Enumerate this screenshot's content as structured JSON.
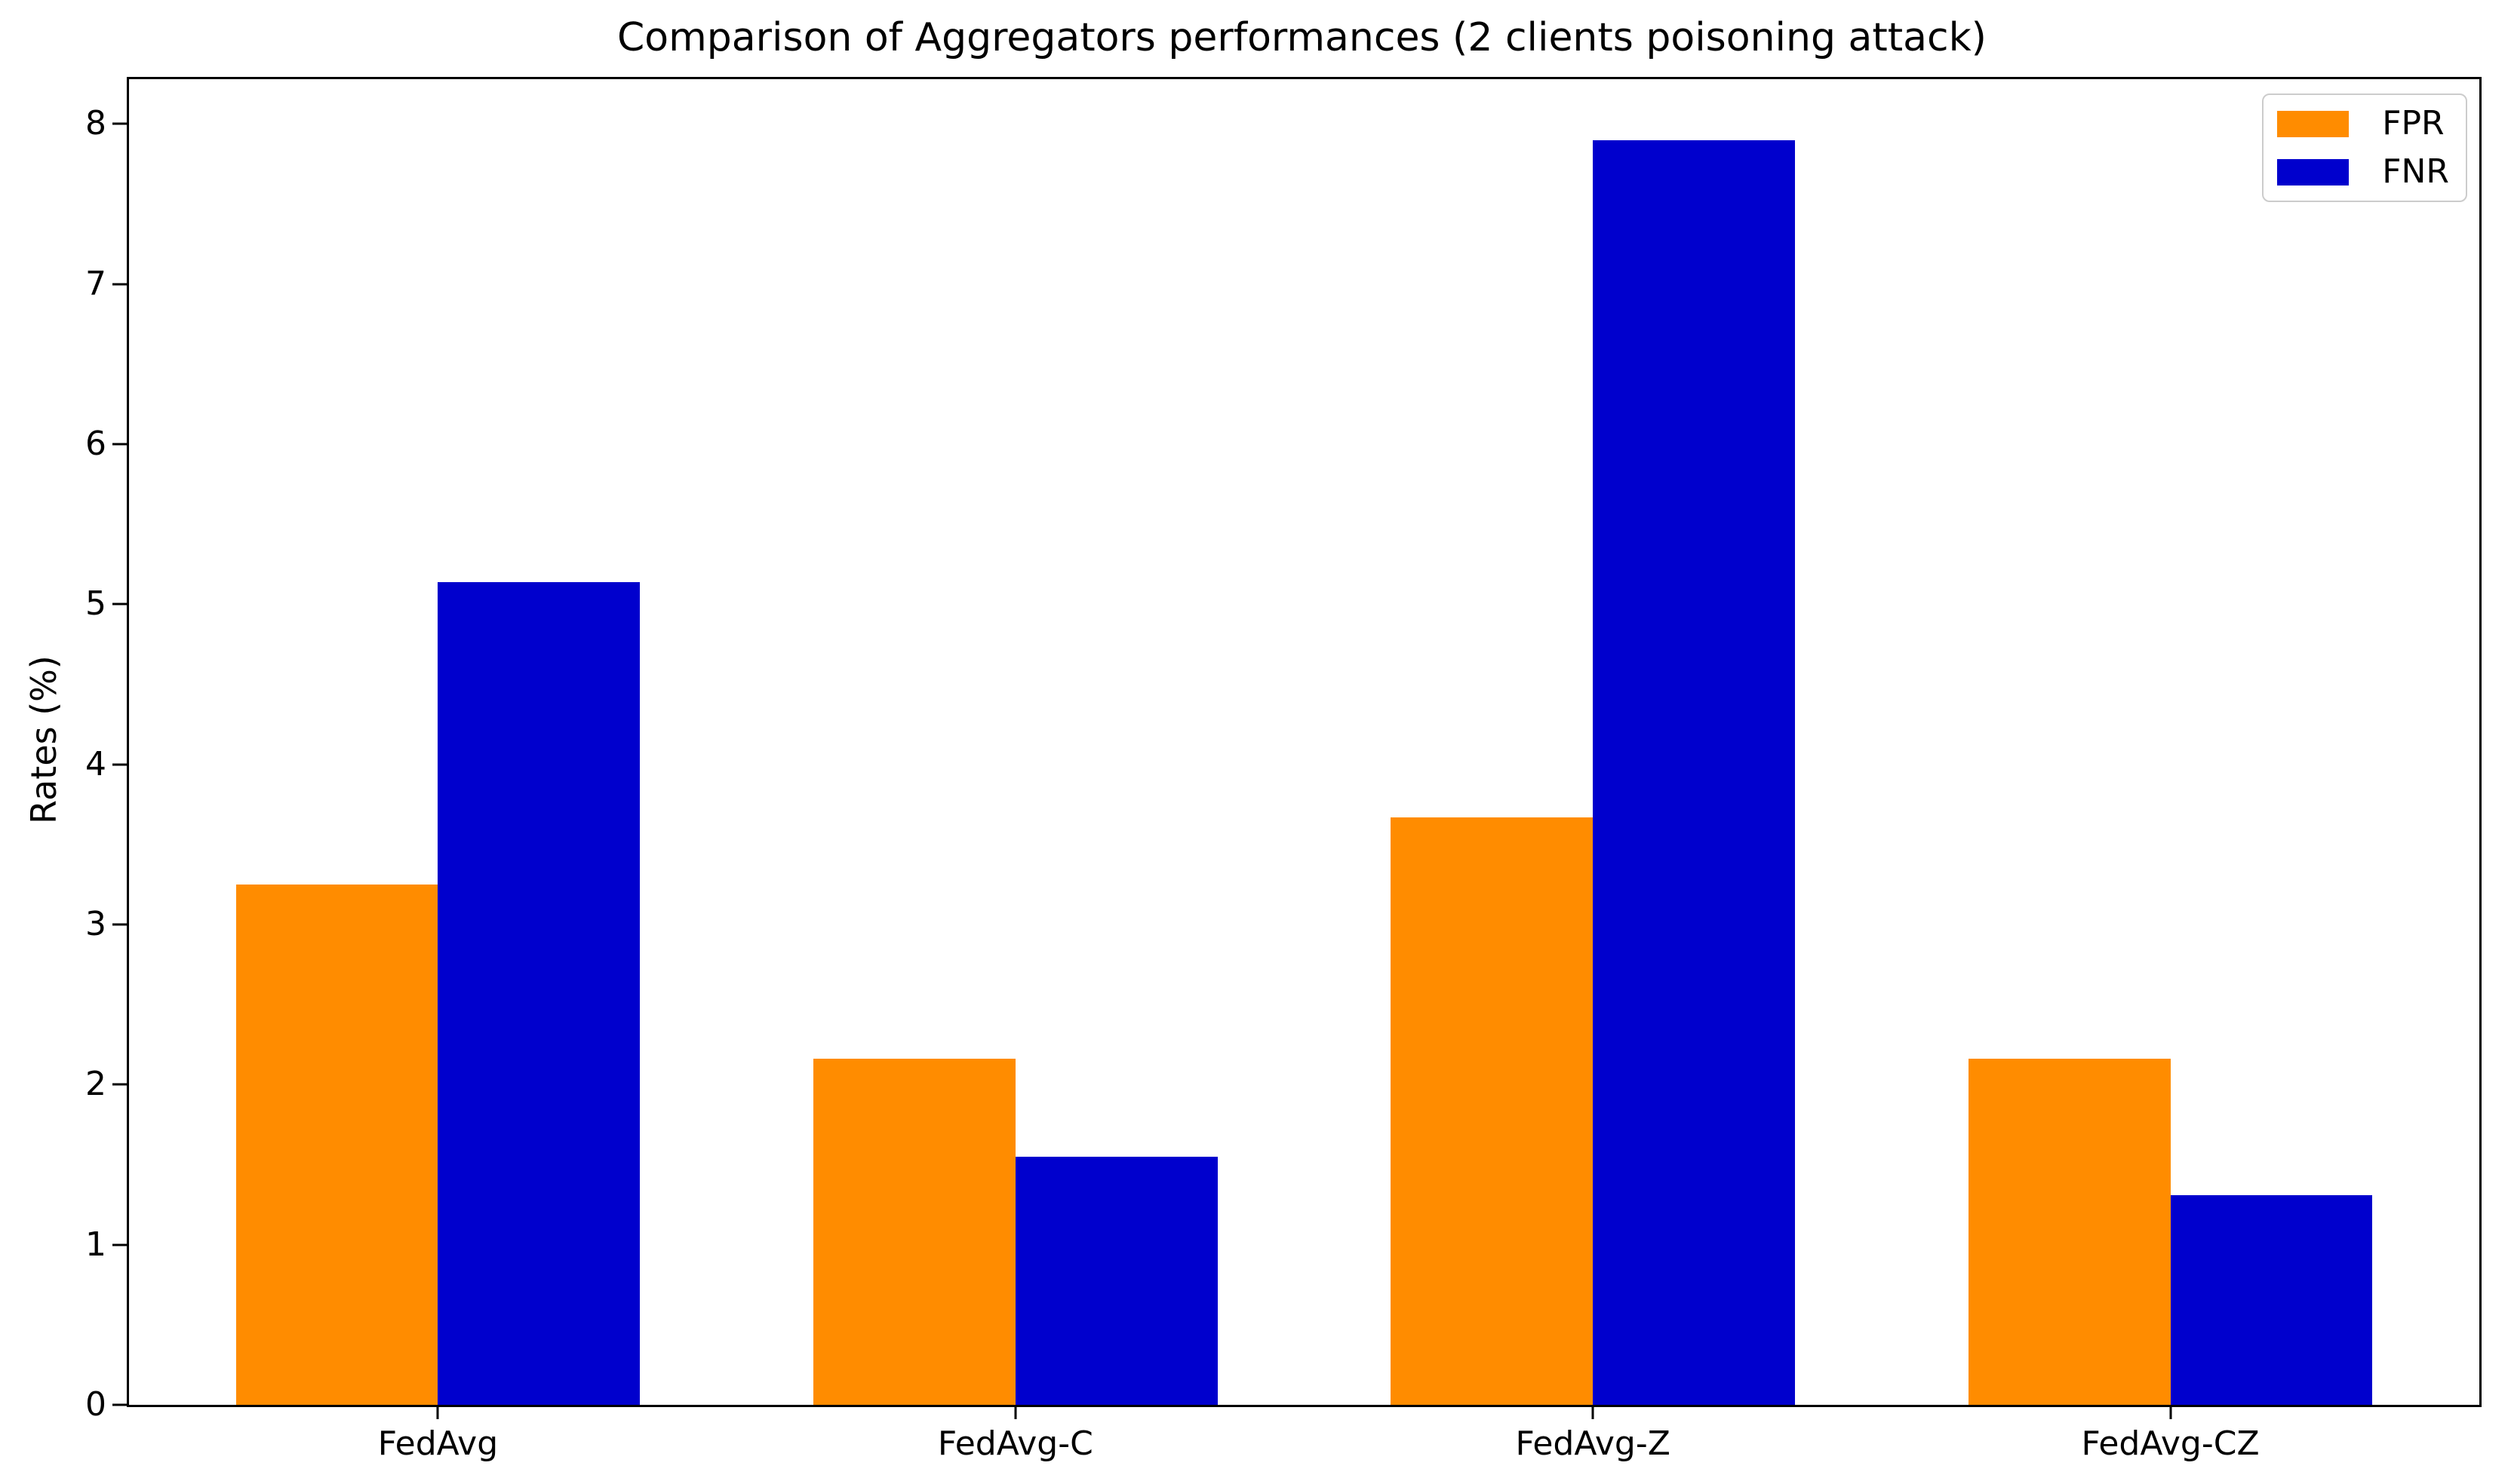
{
  "chart_data": {
    "type": "bar",
    "title": "Comparison of Aggregators performances (2 clients poisoning attack)",
    "xlabel": "",
    "ylabel": "Rates (%)",
    "categories": [
      "FedAvg",
      "FedAvg-C",
      "FedAvg-Z",
      "FedAvg-CZ"
    ],
    "series": [
      {
        "name": "FPR",
        "color": "#FF8C00",
        "values": [
          3.25,
          2.16,
          3.67,
          2.16
        ]
      },
      {
        "name": "FNR",
        "color": "#0000CD",
        "values": [
          5.14,
          1.55,
          7.9,
          1.31
        ]
      }
    ],
    "yticks": [
      0,
      1,
      2,
      3,
      4,
      5,
      6,
      7,
      8
    ],
    "ylim": [
      0,
      8.28
    ],
    "xlim": [
      -0.535,
      3.535
    ],
    "bar_width_units": 0.35,
    "grid": false,
    "legend_position": "upper right",
    "spine_color": "#000000",
    "legend_border_color": "#cccccc"
  }
}
